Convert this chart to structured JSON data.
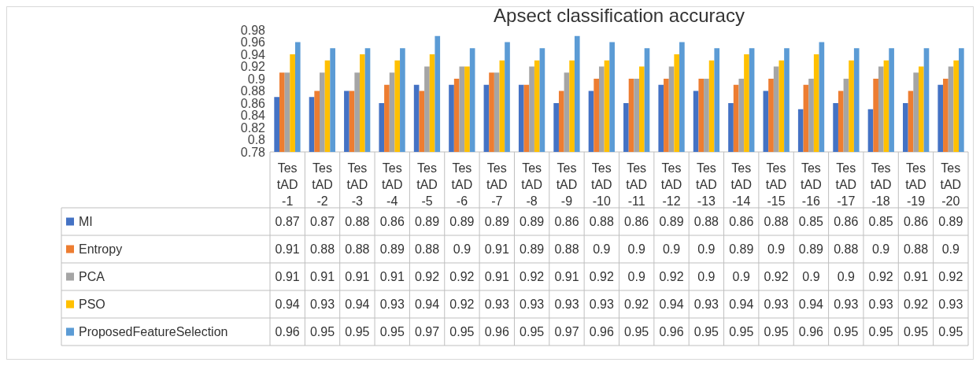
{
  "chart_data": {
    "type": "bar",
    "title": "Apsect classification accuracy",
    "categories": [
      "TestAD-1",
      "TestAD-2",
      "TestAD-3",
      "TestAD-4",
      "TestAD-5",
      "TestAD-6",
      "TestAD-7",
      "TestAD-8",
      "TestAD-9",
      "TestAD-10",
      "TestAD-11",
      "TestAD-12",
      "TestAD-13",
      "TestAD-14",
      "TestAD-15",
      "TestAD-16",
      "TestAD-17",
      "TestAD-18",
      "TestAD-19",
      "TestAD-20"
    ],
    "series": [
      {
        "name": "MI",
        "color": "#4472c4",
        "values": [
          0.87,
          0.87,
          0.88,
          0.86,
          0.89,
          0.89,
          0.89,
          0.89,
          0.86,
          0.88,
          0.86,
          0.89,
          0.88,
          0.86,
          0.88,
          0.85,
          0.86,
          0.85,
          0.86,
          0.89
        ]
      },
      {
        "name": "Entropy",
        "color": "#ed7d31",
        "values": [
          0.91,
          0.88,
          0.88,
          0.89,
          0.88,
          0.9,
          0.91,
          0.89,
          0.88,
          0.9,
          0.9,
          0.9,
          0.9,
          0.89,
          0.9,
          0.89,
          0.88,
          0.9,
          0.88,
          0.9
        ]
      },
      {
        "name": "PCA",
        "color": "#a5a5a5",
        "values": [
          0.91,
          0.91,
          0.91,
          0.91,
          0.92,
          0.92,
          0.91,
          0.92,
          0.91,
          0.92,
          0.9,
          0.92,
          0.9,
          0.9,
          0.92,
          0.9,
          0.9,
          0.92,
          0.91,
          0.92
        ]
      },
      {
        "name": "PSO",
        "color": "#ffc000",
        "values": [
          0.94,
          0.93,
          0.94,
          0.93,
          0.94,
          0.92,
          0.93,
          0.93,
          0.93,
          0.93,
          0.92,
          0.94,
          0.93,
          0.94,
          0.93,
          0.94,
          0.93,
          0.93,
          0.92,
          0.93
        ]
      },
      {
        "name": "ProposedFeatureSelection",
        "color": "#5b9bd5",
        "values": [
          0.96,
          0.95,
          0.95,
          0.95,
          0.97,
          0.95,
          0.96,
          0.95,
          0.97,
          0.96,
          0.95,
          0.96,
          0.95,
          0.95,
          0.95,
          0.96,
          0.95,
          0.95,
          0.95,
          0.95
        ]
      }
    ],
    "ylim": [
      0.78,
      0.98
    ],
    "yticks": [
      0.78,
      0.8,
      0.82,
      0.84,
      0.86,
      0.88,
      0.9,
      0.92,
      0.94,
      0.96,
      0.98
    ],
    "data_labels": true,
    "legend": "bottom left"
  }
}
